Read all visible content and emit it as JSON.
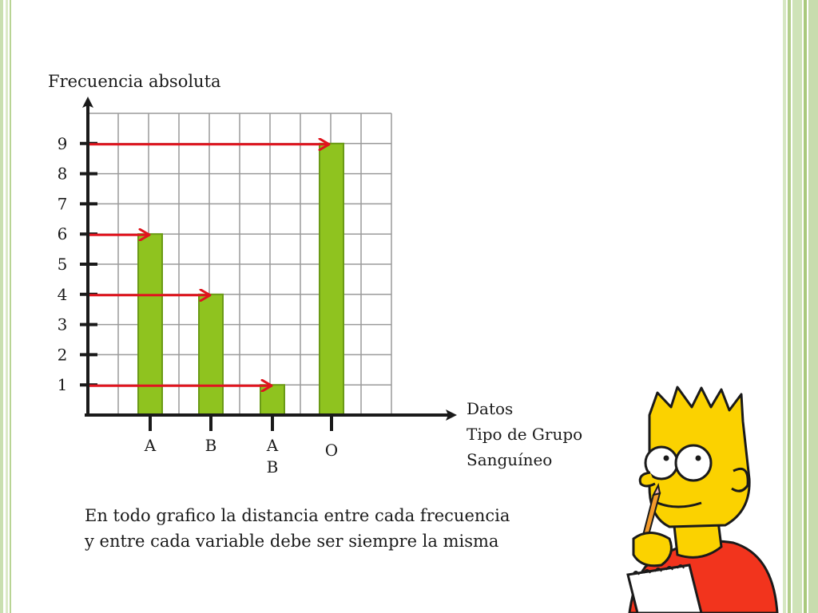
{
  "chart_data": {
    "type": "bar",
    "categories": [
      "A",
      "B",
      "AB",
      "O"
    ],
    "category_lines": [
      [
        "A"
      ],
      [
        "B"
      ],
      [
        "A",
        "B"
      ],
      [
        "O"
      ]
    ],
    "values": [
      6,
      4,
      1,
      9
    ],
    "ylabel": "Frecuencia absoluta",
    "xlabel_lines": [
      "Datos",
      "Tipo de Grupo",
      "Sanguíneo"
    ],
    "yticks": [
      1,
      2,
      3,
      4,
      5,
      6,
      7,
      8,
      9
    ],
    "ylim": [
      0,
      10
    ],
    "grid": true,
    "bar_color": "#8fc31f",
    "bar_edge_color": "#6a9a16",
    "arrow_color": "#e0141e",
    "annotations": "red arrows from the frequency axis to the top of each bar"
  },
  "note_lines": [
    "En todo grafico la distancia entre cada frecuencia",
    "y entre cada variable debe ser siempre la misma"
  ],
  "illustration": "bart-simpson-thinking-with-pencil-and-notepad"
}
